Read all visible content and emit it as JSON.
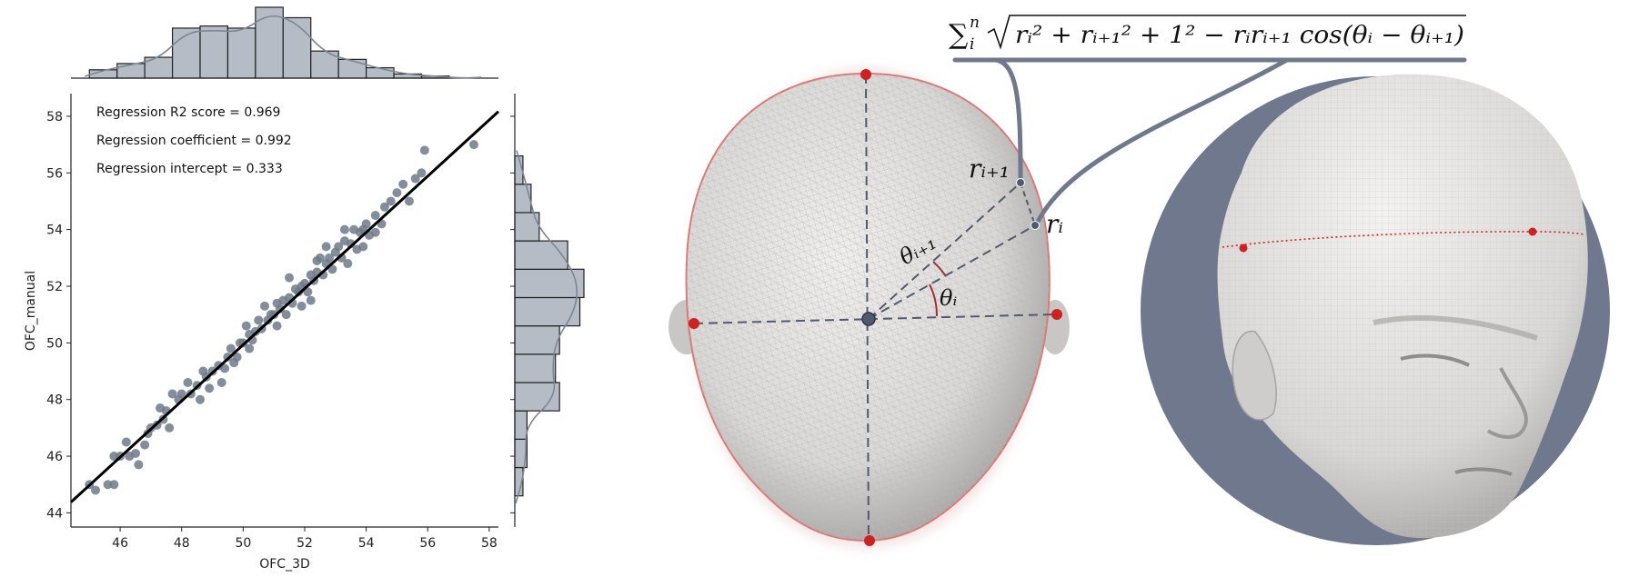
{
  "chart_data": {
    "type": "scatter",
    "xlabel": "OFC_3D",
    "ylabel": "OFC_manual",
    "xlim": [
      44.4,
      58.3
    ],
    "ylim": [
      43.5,
      58.8
    ],
    "xticks": [
      "46",
      "48",
      "50",
      "52",
      "54",
      "56",
      "58"
    ],
    "yticks": [
      "44",
      "46",
      "48",
      "50",
      "52",
      "54",
      "56",
      "58"
    ],
    "annotations": [
      "Regression R2 score = 0.969",
      "Regression coefficient = 0.992",
      "Regression intercept = 0.333"
    ],
    "regression": {
      "coefficient": 0.992,
      "intercept": 0.333
    },
    "marker_color": "#6f7a8a",
    "bar_color": "#b5bcc6",
    "x_marginal_bins": {
      "edges": [
        45.0,
        45.9,
        46.8,
        47.7,
        48.6,
        49.5,
        50.4,
        51.3,
        52.2,
        53.1,
        54.0,
        54.9,
        55.8,
        56.7,
        57.6
      ],
      "counts": [
        4,
        7,
        10,
        24,
        25,
        24,
        34,
        29,
        13,
        9,
        5,
        2,
        1,
        0
      ]
    },
    "y_marginal_bins": {
      "edges": [
        44.6,
        45.6,
        46.6,
        47.6,
        48.6,
        49.6,
        50.6,
        51.6,
        52.6,
        53.6,
        54.6,
        55.6,
        56.6
      ],
      "counts": [
        2,
        3,
        3,
        11,
        10,
        11,
        16,
        17,
        13,
        6,
        4,
        2
      ]
    },
    "points": [
      [
        45.0,
        45.0
      ],
      [
        45.2,
        44.8
      ],
      [
        45.8,
        45.0
      ],
      [
        45.6,
        45.0
      ],
      [
        45.8,
        46.0
      ],
      [
        46.0,
        46.0
      ],
      [
        46.3,
        46.0
      ],
      [
        46.5,
        46.1
      ],
      [
        46.6,
        45.7
      ],
      [
        46.8,
        46.4
      ],
      [
        46.9,
        46.8
      ],
      [
        47.0,
        47.0
      ],
      [
        47.2,
        47.1
      ],
      [
        47.4,
        47.3
      ],
      [
        47.5,
        47.6
      ],
      [
        47.6,
        47.0
      ],
      [
        47.9,
        48.0
      ],
      [
        47.7,
        48.2
      ],
      [
        48.0,
        48.2
      ],
      [
        48.3,
        48.2
      ],
      [
        48.5,
        48.5
      ],
      [
        48.6,
        48.0
      ],
      [
        48.8,
        48.8
      ],
      [
        48.9,
        48.4
      ],
      [
        49.0,
        49.0
      ],
      [
        49.2,
        49.2
      ],
      [
        49.3,
        48.6
      ],
      [
        49.5,
        49.5
      ],
      [
        49.6,
        49.8
      ],
      [
        49.8,
        49.5
      ],
      [
        49.9,
        50.0
      ],
      [
        50.0,
        50.0
      ],
      [
        50.2,
        50.3
      ],
      [
        50.2,
        49.8
      ],
      [
        50.4,
        50.4
      ],
      [
        50.5,
        50.8
      ],
      [
        50.6,
        50.5
      ],
      [
        50.8,
        50.8
      ],
      [
        50.9,
        51.0
      ],
      [
        51.0,
        51.0
      ],
      [
        51.1,
        50.6
      ],
      [
        51.2,
        51.2
      ],
      [
        51.3,
        51.5
      ],
      [
        51.4,
        51.0
      ],
      [
        51.5,
        51.6
      ],
      [
        51.6,
        51.4
      ],
      [
        51.7,
        51.9
      ],
      [
        51.8,
        51.8
      ],
      [
        51.9,
        52.0
      ],
      [
        52.0,
        52.1
      ],
      [
        52.1,
        51.8
      ],
      [
        52.2,
        52.4
      ],
      [
        52.3,
        52.2
      ],
      [
        52.4,
        52.5
      ],
      [
        52.5,
        53.0
      ],
      [
        52.6,
        52.4
      ],
      [
        52.7,
        52.8
      ],
      [
        52.8,
        53.0
      ],
      [
        52.9,
        52.6
      ],
      [
        53.0,
        53.2
      ],
      [
        53.1,
        53.4
      ],
      [
        53.2,
        53.0
      ],
      [
        53.3,
        53.6
      ],
      [
        53.4,
        52.8
      ],
      [
        53.5,
        53.5
      ],
      [
        53.6,
        54.0
      ],
      [
        53.7,
        53.3
      ],
      [
        53.8,
        53.9
      ],
      [
        53.9,
        54.0
      ],
      [
        54.0,
        54.2
      ],
      [
        54.1,
        53.8
      ],
      [
        54.3,
        54.5
      ],
      [
        54.5,
        54.2
      ],
      [
        54.6,
        54.8
      ],
      [
        54.8,
        55.0
      ],
      [
        55.0,
        55.3
      ],
      [
        55.2,
        55.6
      ],
      [
        55.4,
        55.0
      ],
      [
        55.6,
        55.8
      ],
      [
        55.8,
        56.0
      ],
      [
        55.9,
        56.8
      ],
      [
        57.5,
        57.0
      ],
      [
        50.7,
        51.3
      ],
      [
        49.4,
        49.1
      ],
      [
        48.2,
        48.6
      ],
      [
        51.5,
        52.3
      ],
      [
        52.2,
        51.5
      ],
      [
        53.3,
        54.0
      ],
      [
        50.1,
        50.6
      ],
      [
        47.3,
        47.7
      ],
      [
        49.7,
        49.3
      ],
      [
        51.9,
        51.3
      ],
      [
        52.7,
        53.4
      ],
      [
        53.9,
        53.4
      ],
      [
        50.3,
        50.1
      ],
      [
        48.7,
        49.0
      ],
      [
        51.1,
        51.4
      ],
      [
        52.4,
        52.9
      ],
      [
        46.2,
        46.5
      ],
      [
        54.3,
        53.9
      ]
    ]
  },
  "diagram": {
    "formula_prefix": "∑",
    "formula_sub": "i",
    "formula_sup": "n",
    "formula_radicand": "rᵢ² + rᵢ₊₁² + 1² − rᵢrᵢ₊₁ cos(θᵢ − θᵢ₊₁)",
    "label_r_next": "rᵢ₊₁",
    "label_r_i": "rᵢ",
    "label_theta_next": "θᵢ₊₁",
    "label_theta_i": "θᵢ",
    "accent_color": "#70798c",
    "landmark_color": "#cc2222"
  }
}
